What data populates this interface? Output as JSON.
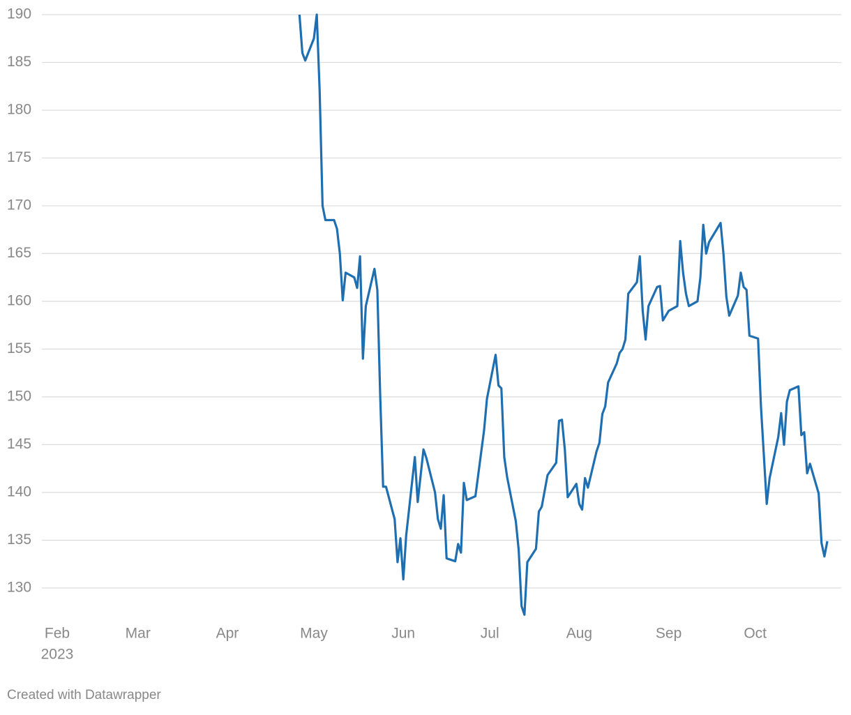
{
  "chart_data": {
    "type": "line",
    "x": [
      84,
      85,
      86,
      89,
      90,
      91,
      92,
      93,
      96,
      97,
      98,
      99,
      100,
      103,
      104,
      105,
      106,
      107,
      110,
      111,
      112,
      113,
      114,
      117,
      118,
      119,
      120,
      121,
      124,
      125,
      127,
      128,
      131,
      132,
      133,
      134,
      135,
      138,
      139,
      140,
      141,
      142,
      145,
      147,
      148,
      149,
      152,
      153,
      154,
      155,
      156,
      159,
      160,
      161,
      162,
      163,
      166,
      167,
      168,
      170,
      173,
      174,
      175,
      176,
      177,
      180,
      181,
      182,
      183,
      184,
      187,
      188,
      189,
      190,
      191,
      194,
      195,
      196,
      197,
      198,
      201,
      202,
      203,
      204,
      205,
      208,
      209,
      210,
      212,
      215,
      216,
      217,
      218,
      219,
      222,
      223,
      224,
      225,
      226,
      230,
      231,
      232,
      233,
      236,
      237,
      238,
      239,
      240,
      243,
      244,
      246,
      247,
      250,
      251,
      252,
      253,
      254,
      257,
      258,
      259,
      260,
      261,
      264,
      265,
      266,
      267
    ],
    "series": [
      {
        "color": "#1f6fb0",
        "values": [
          190,
          186,
          185.2,
          187.5,
          190,
          182,
          170,
          168.5,
          168.5,
          167.6,
          165,
          160.1,
          163,
          162.5,
          161.4,
          164.7,
          154,
          159.5,
          163.4,
          161.2,
          150,
          140.6,
          140.6,
          137.2,
          132.7,
          135.2,
          130.9,
          135.5,
          143.7,
          139,
          144.5,
          143.6,
          140,
          137.2,
          136.2,
          139.7,
          133.1,
          132.8,
          134.6,
          133.7,
          141,
          139.2,
          139.6,
          144.2,
          146.5,
          149.8,
          154.4,
          151.2,
          150.9,
          143.7,
          141.6,
          137,
          134,
          128.1,
          127.2,
          132.7,
          134.1,
          138,
          138.5,
          141.8,
          143.1,
          147.5,
          147.6,
          144.5,
          139.5,
          140.9,
          138.8,
          138.2,
          141.5,
          140.5,
          144.3,
          145.2,
          148.2,
          149,
          151.5,
          153.5,
          154.6,
          155,
          156,
          160.8,
          162,
          164.7,
          159,
          156,
          159.5,
          161.5,
          161.6,
          158,
          159,
          159.5,
          166.3,
          163,
          160.8,
          159.5,
          160,
          162.5,
          168,
          165,
          166.2,
          168.2,
          165,
          160.5,
          158.5,
          160.6,
          163,
          161.5,
          161.2,
          156.4,
          156.1,
          149,
          138.8,
          141.5,
          145.8,
          148.3,
          145,
          149.5,
          150.7,
          151.1,
          146,
          146.3,
          142,
          143,
          139.9,
          134.7,
          133.3,
          134.9
        ]
      }
    ],
    "xlim": [
      -5,
      272
    ],
    "xticks": [
      {
        "value": 0,
        "label": "Feb"
      },
      {
        "value": 28,
        "label": "Mar"
      },
      {
        "value": 59,
        "label": "Apr"
      },
      {
        "value": 89,
        "label": "May"
      },
      {
        "value": 120,
        "label": "Jun"
      },
      {
        "value": 150,
        "label": "Jul"
      },
      {
        "value": 181,
        "label": "Aug"
      },
      {
        "value": 212,
        "label": "Sep"
      },
      {
        "value": 242,
        "label": "Oct"
      }
    ],
    "x_year_label": "2023",
    "ylim": [
      127,
      190
    ],
    "yticks": [
      130,
      135,
      140,
      145,
      150,
      155,
      160,
      165,
      170,
      175,
      180,
      185,
      190
    ],
    "grid": true,
    "footer": "Created with Datawrapper"
  }
}
